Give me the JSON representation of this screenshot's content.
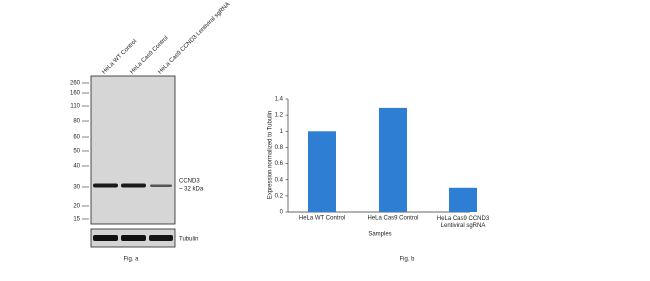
{
  "blot": {
    "lanes": [
      "HeLa WT Control",
      "HeLa Cas9 Control",
      "HeLa Cas9 CCND3 Lentiviral sgRNA"
    ],
    "markers": [
      260,
      160,
      110,
      80,
      60,
      50,
      40,
      30,
      20,
      15
    ],
    "target": "CCND3",
    "target_size": "~ 32 kDa",
    "loading_control": "Tubulin",
    "caption": "Fig. a"
  },
  "chart_data": {
    "type": "bar",
    "categories": [
      "HeLa WT Control",
      "HeLa Cas9 Control",
      "HeLa Cas9 CCND3 Lentiviral sgRNA"
    ],
    "values": [
      1.0,
      1.29,
      0.3
    ],
    "color": "#2e7fd4",
    "ylim": [
      0,
      1.4
    ],
    "yticks": [
      0,
      0.2,
      0.4,
      0.6,
      0.8,
      1,
      1.2,
      1.4
    ],
    "ylabel": "Expression normalized to Tubulin",
    "xlabel": "Samples",
    "caption": "Fig. b"
  }
}
